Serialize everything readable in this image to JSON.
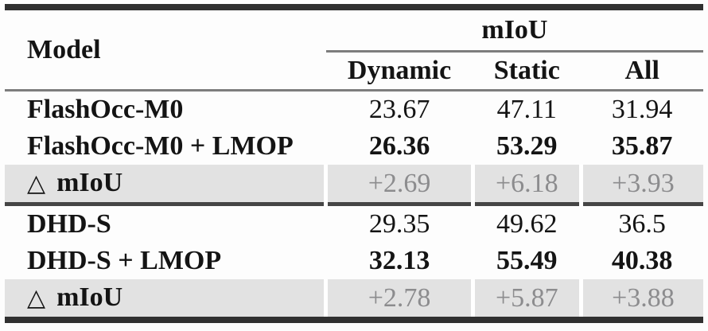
{
  "table": {
    "header": {
      "model_label": "Model",
      "group_label": "mIoU",
      "subcolumns": [
        "Dynamic",
        "Static",
        "All"
      ]
    },
    "sections": [
      {
        "rows": [
          {
            "model": "FlashOcc-M0",
            "values": [
              "23.67",
              "47.11",
              "31.94"
            ],
            "style": "normal"
          },
          {
            "model": "FlashOcc-M0 + LMOP",
            "values": [
              "26.36",
              "53.29",
              "35.87"
            ],
            "style": "bold"
          },
          {
            "icon": "△",
            "model": "mIoU",
            "values": [
              "+2.69",
              "+6.18",
              "+3.93"
            ],
            "style": "delta"
          }
        ]
      },
      {
        "rows": [
          {
            "model": "DHD-S",
            "values": [
              "29.35",
              "49.62",
              "36.5"
            ],
            "style": "normal"
          },
          {
            "model": "DHD-S + LMOP",
            "values": [
              "32.13",
              "55.49",
              "40.38"
            ],
            "style": "bold"
          },
          {
            "icon": "△",
            "model": "mIoU",
            "values": [
              "+2.78",
              "+5.87",
              "+3.88"
            ],
            "style": "delta"
          }
        ]
      }
    ],
    "colors": {
      "delta_row_bg": "#e2e2e2",
      "delta_text": "#8c8c8e",
      "rule_dark": "#303030",
      "rule_mid": "#454545",
      "rule_light": "#7d7d7d"
    }
  },
  "chart_data": {
    "type": "table",
    "title": "",
    "columns": [
      "Model",
      "mIoU Dynamic",
      "mIoU Static",
      "mIoU All"
    ],
    "rows": [
      [
        "FlashOcc-M0",
        23.67,
        47.11,
        31.94
      ],
      [
        "FlashOcc-M0 + LMOP",
        26.36,
        53.29,
        35.87
      ],
      [
        "△ mIoU",
        "+2.69",
        "+6.18",
        "+3.93"
      ],
      [
        "DHD-S",
        29.35,
        49.62,
        36.5
      ],
      [
        "DHD-S + LMOP",
        32.13,
        55.49,
        40.38
      ],
      [
        "△ mIoU",
        "+2.78",
        "+5.87",
        "+3.88"
      ]
    ]
  }
}
